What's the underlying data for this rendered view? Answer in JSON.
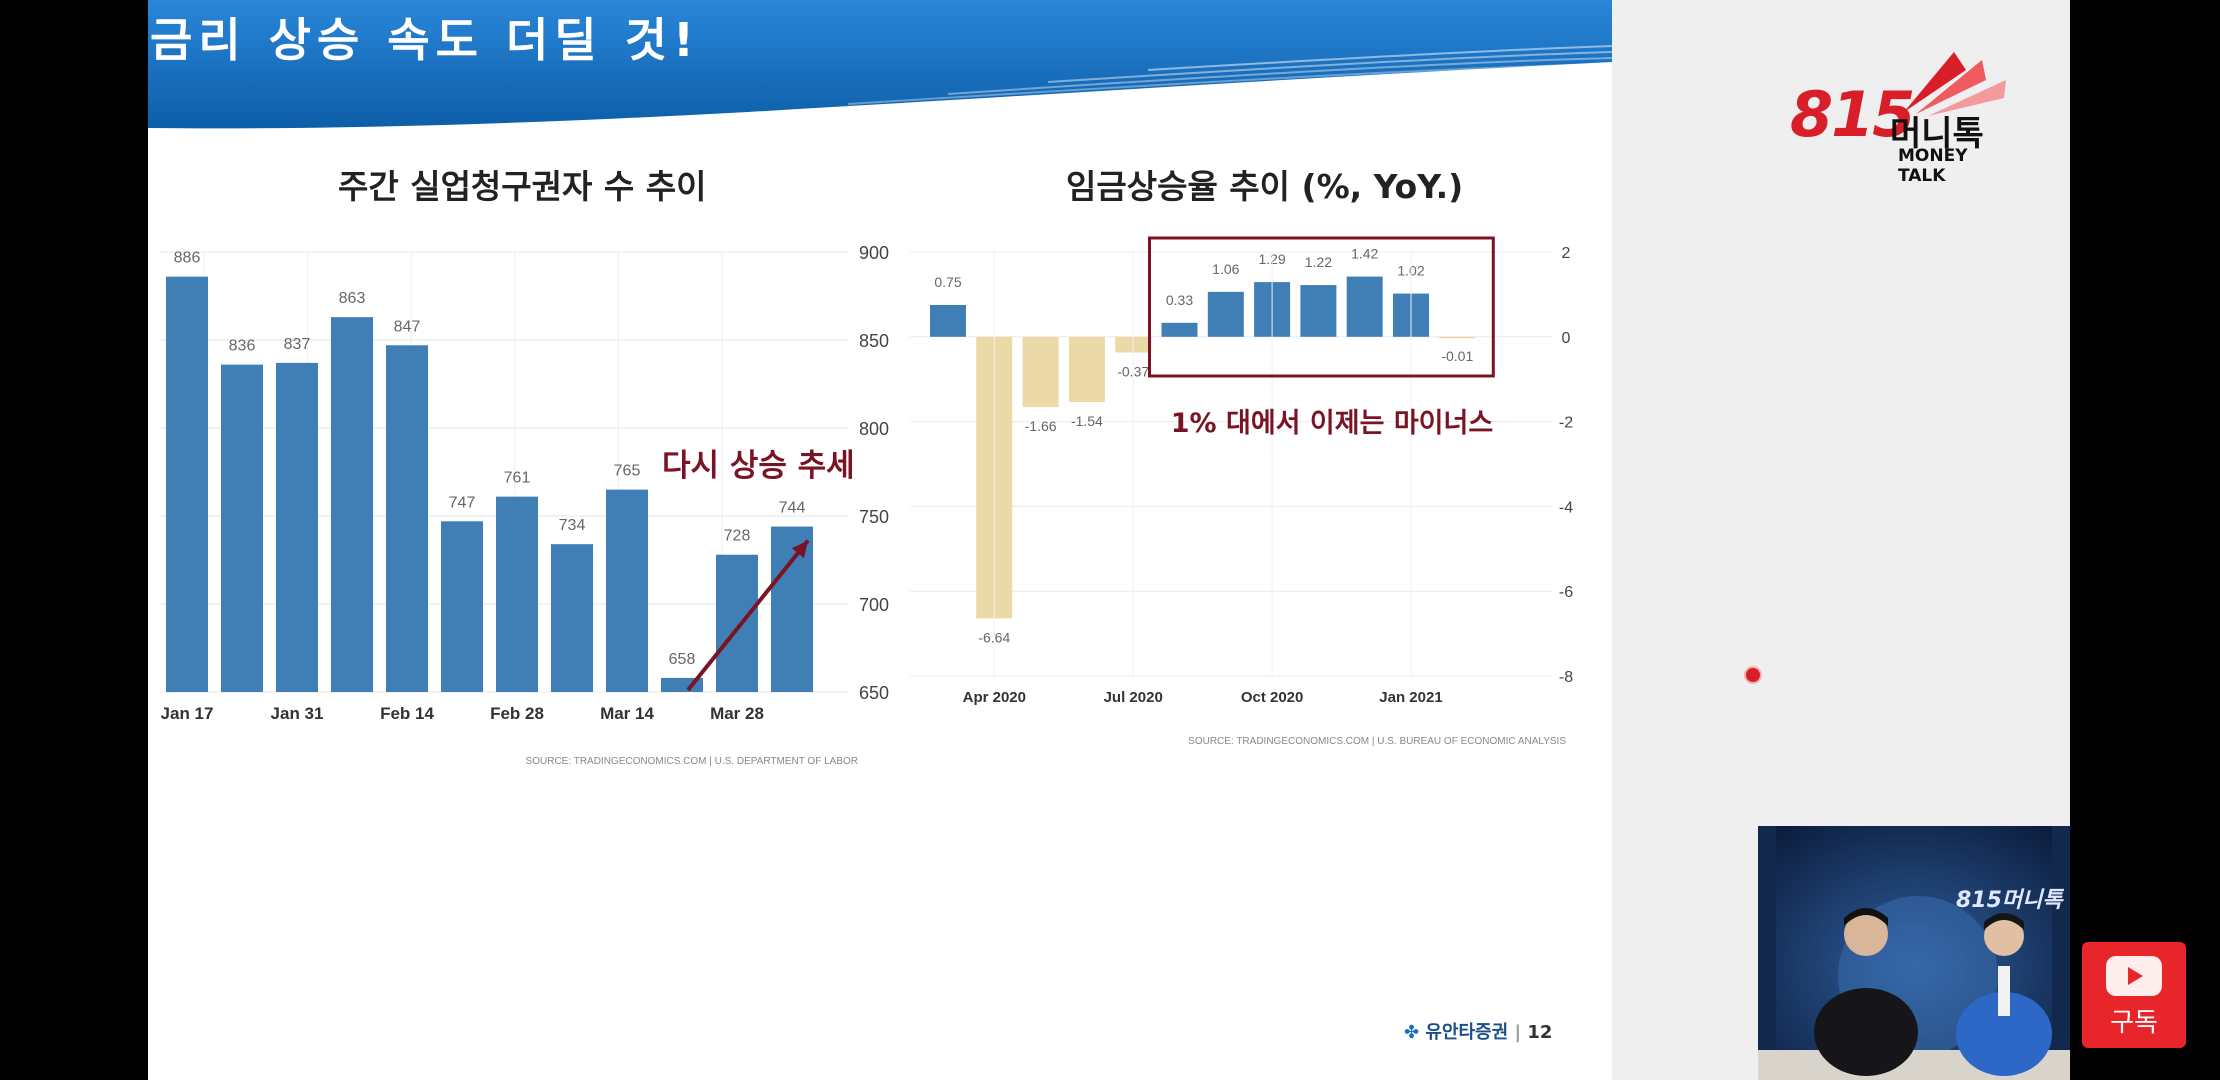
{
  "slide": {
    "title": "금리 상승 속도 더딜 것!",
    "footer_company": "유안타증권",
    "page_number": "12"
  },
  "left_chart": {
    "heading": "주간 실업청구권자 수 추이",
    "annotation": "다시 상승 추세",
    "source": "SOURCE: TRADINGECONOMICS.COM  |  U.S. DEPARTMENT OF LABOR"
  },
  "right_chart": {
    "heading": "임금상승율 추이 (%, YoY.)",
    "annotation": "1% 대에서 이제는 마이너스",
    "source": "SOURCE: TRADINGECONOMICS.COM  |  U.S. BUREAU OF ECONOMIC ANALYSIS"
  },
  "chart_data": [
    {
      "type": "bar",
      "title": "주간 실업청구권자 수 추이",
      "values": [
        886,
        836,
        837,
        863,
        847,
        747,
        761,
        734,
        765,
        658,
        728,
        744
      ],
      "data_labels": [
        "886",
        "836",
        "837",
        "863",
        "847",
        "747",
        "761",
        "734",
        "765",
        "658",
        "728",
        "744"
      ],
      "x_tick_labels": [
        "Jan 17",
        "Jan 31",
        "Feb 14",
        "Feb 28",
        "Mar 14",
        "Mar 28"
      ],
      "x_tick_at_bar": [
        0,
        2,
        4,
        6,
        8,
        10
      ],
      "y_ticks": [
        "900",
        "850",
        "800",
        "750",
        "700",
        "650"
      ],
      "y_tick_values": [
        900,
        850,
        800,
        750,
        700,
        650
      ],
      "ylim": [
        650,
        900
      ],
      "y_axis_side": "right",
      "bar_color": "#3f7fb5",
      "trend_arrow_bars": [
        9,
        11
      ],
      "annotation_color": "#7a1424"
    },
    {
      "type": "bar",
      "title": "임금상승율 추이 (%, YoY.)",
      "values": [
        0.75,
        -6.64,
        -1.66,
        -1.54,
        -0.37,
        0.33,
        1.06,
        1.29,
        1.22,
        1.42,
        1.02,
        -0.01
      ],
      "data_labels": [
        "0.75",
        "-6.64",
        "-1.66",
        "-1.54",
        "-0.37",
        "0.33",
        "1.06",
        "1.29",
        "1.22",
        "1.42",
        "1.02",
        "-0.01"
      ],
      "x_tick_labels": [
        "Apr 2020",
        "Jul 2020",
        "Oct 2020",
        "Jan 2021"
      ],
      "x_tick_at_bar": [
        1,
        4,
        7,
        10
      ],
      "y_ticks": [
        "2",
        "0",
        "-2",
        "-4",
        "-6",
        "-8"
      ],
      "y_tick_values": [
        2,
        0,
        -2,
        -4,
        -6,
        -8
      ],
      "ylim": [
        -8,
        2
      ],
      "y_axis_side": "right",
      "positive_color": "#3f7fb5",
      "negative_color": "#ecd9a8",
      "highlight_box_bars": [
        5,
        11
      ],
      "highlight_color": "#7a1424"
    }
  ],
  "brand": {
    "number": "815",
    "korean": "머니톡",
    "english": "MONEY TALK"
  },
  "studio": {
    "logo": "815머니톡"
  },
  "subscribe": {
    "label": "구독"
  }
}
